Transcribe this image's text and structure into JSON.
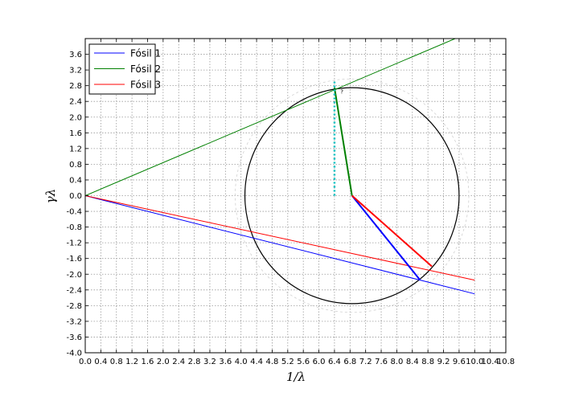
{
  "chart_data": {
    "type": "line",
    "title": "",
    "xlabel": "1/λ",
    "ylabel": "γλ",
    "xlim": [
      0.0,
      10.8
    ],
    "ylim": [
      -4.0,
      4.0
    ],
    "grid": true,
    "legend_position": "top-left",
    "x_ticks": [
      "0.0",
      "0.4",
      "0.8",
      "1.2",
      "1.6",
      "2.0",
      "2.4",
      "2.8",
      "3.2",
      "3.6",
      "4.0",
      "4.4",
      "4.8",
      "5.2",
      "5.6",
      "6.0",
      "6.4",
      "6.8",
      "7.2",
      "7.6",
      "8.0",
      "8.4",
      "8.8",
      "9.2",
      "9.6",
      "10.0",
      "10.4",
      "10.8"
    ],
    "y_ticks": [
      "-4.0",
      "-3.6",
      "-3.2",
      "-2.8",
      "-2.4",
      "-2.0",
      "-1.6",
      "-1.2",
      "-0.8",
      "-0.4",
      "0.0",
      "0.4",
      "0.8",
      "1.2",
      "1.6",
      "2.0",
      "2.4",
      "2.8",
      "3.2",
      "3.6"
    ],
    "series": [
      {
        "name": "Fósil 1",
        "color": "#0000ff",
        "points": [
          [
            0.0,
            0.0
          ],
          [
            10.0,
            -2.5
          ]
        ]
      },
      {
        "name": "Fósil 2",
        "color": "#008000",
        "points": [
          [
            0.0,
            0.0
          ],
          [
            9.5,
            4.0
          ]
        ]
      },
      {
        "name": "Fósil 3",
        "color": "#ff0000",
        "points": [
          [
            0.0,
            0.0
          ],
          [
            10.0,
            -2.15
          ]
        ]
      }
    ],
    "circle": {
      "center": [
        6.85,
        0.0
      ],
      "radius": 2.75,
      "color": "#000000"
    },
    "radius_segments": [
      {
        "color": "#0000ff",
        "points": [
          [
            6.85,
            0.0
          ],
          [
            8.6,
            -2.15
          ]
        ]
      },
      {
        "color": "#008000",
        "points": [
          [
            6.85,
            0.0
          ],
          [
            6.4,
            2.75
          ]
        ]
      },
      {
        "color": "#ff0000",
        "points": [
          [
            6.85,
            0.0
          ],
          [
            8.9,
            -1.8
          ]
        ]
      }
    ],
    "vertical_marker": {
      "color": "#00bfbf",
      "x": 6.4,
      "y": [
        0.0,
        2.9
      ]
    },
    "annotations": [
      {
        "text": "?",
        "x": 6.55,
        "y": 2.6
      }
    ],
    "faint_arc": {
      "center": [
        6.85,
        0.0
      ],
      "radius": 3.0,
      "color": "#d0d0d0"
    }
  }
}
